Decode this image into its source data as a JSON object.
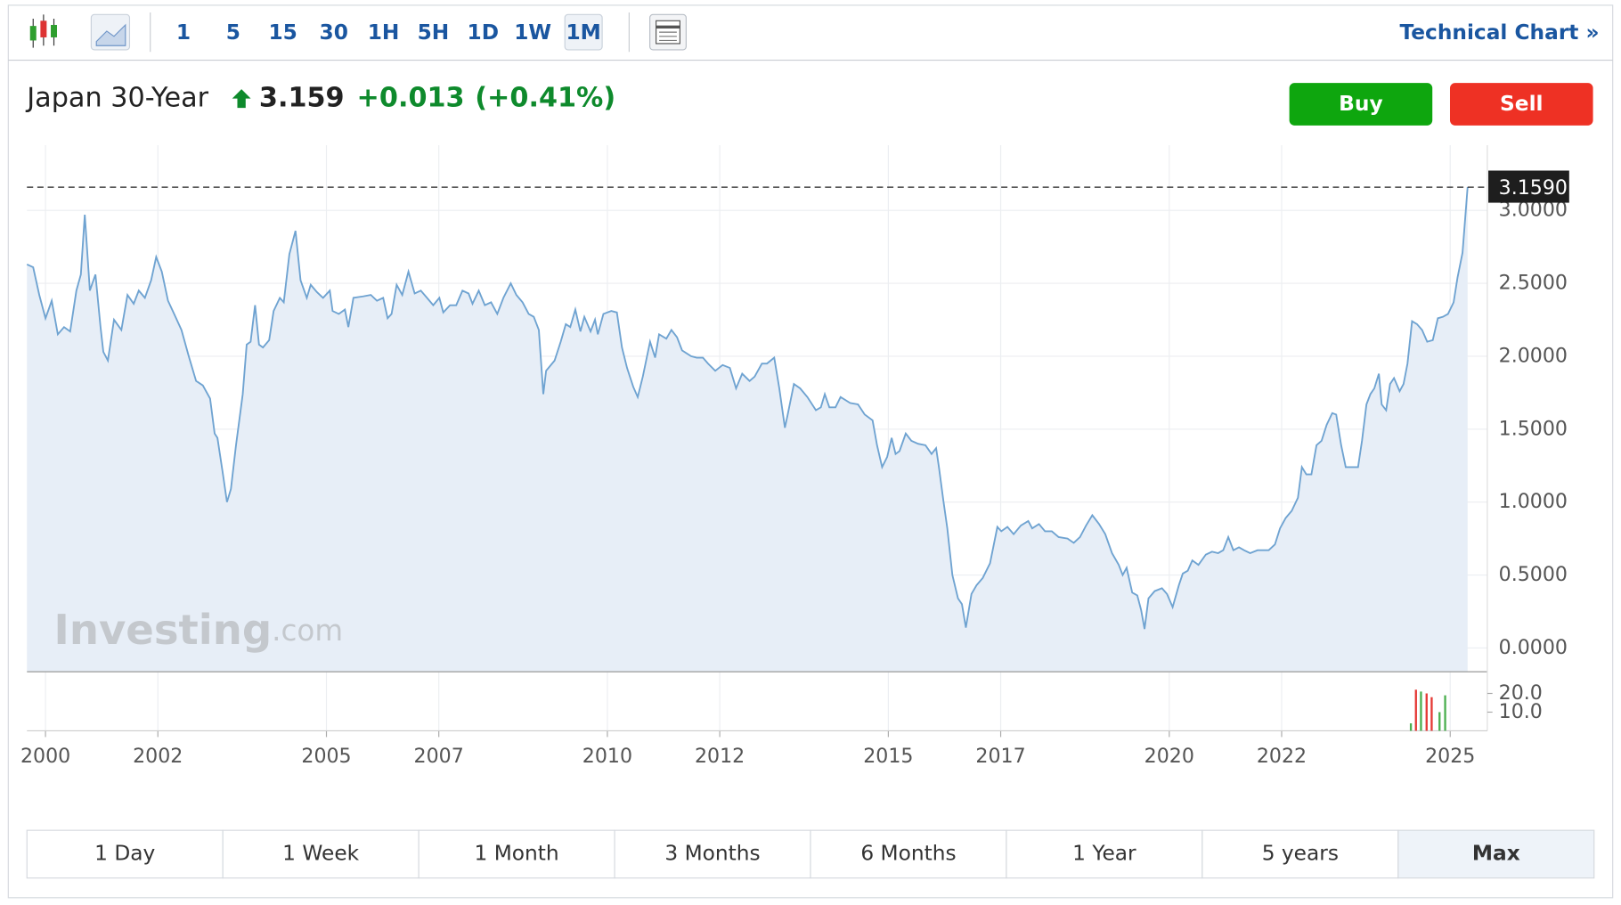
{
  "toolbar": {
    "intervals": [
      {
        "label": "1"
      },
      {
        "label": "5"
      },
      {
        "label": "15"
      },
      {
        "label": "30"
      },
      {
        "label": "1H"
      },
      {
        "label": "5H"
      },
      {
        "label": "1D"
      },
      {
        "label": "1W"
      },
      {
        "label": "1M",
        "active": true
      }
    ],
    "link": "Technical Chart »"
  },
  "header": {
    "name": "Japan 30-Year",
    "last": "3.159",
    "change": "+0.013",
    "change_pct": "(+0.41%)"
  },
  "buttons": {
    "buy": "Buy",
    "sell": "Sell"
  },
  "watermark": {
    "brand": "Investing",
    "suffix": ".com"
  },
  "chart_data": {
    "type": "line",
    "color": "#6fa3d1",
    "fill": "#e7eef7",
    "x": [
      1999.67,
      1999.78,
      1999.89,
      2000.0,
      2000.11,
      2000.22,
      2000.33,
      2000.44,
      2000.55,
      2000.63,
      2000.7,
      2000.79,
      2000.89,
      2000.98,
      2001.03,
      2001.11,
      2001.22,
      2001.35,
      2001.46,
      2001.57,
      2001.66,
      2001.77,
      2001.88,
      2001.97,
      2002.07,
      2002.18,
      2002.29,
      2002.42,
      2002.55,
      2002.68,
      2002.8,
      2002.93,
      2003.01,
      2003.06,
      2003.15,
      2003.23,
      2003.3,
      2003.39,
      2003.51,
      2003.58,
      2003.65,
      2003.73,
      2003.8,
      2003.87,
      2003.98,
      2004.06,
      2004.17,
      2004.24,
      2004.34,
      2004.45,
      2004.54,
      2004.65,
      2004.72,
      2004.83,
      2004.94,
      2005.06,
      2005.11,
      2005.22,
      2005.33,
      2005.39,
      2005.48,
      2005.65,
      2005.79,
      2005.9,
      2006.01,
      2006.09,
      2006.16,
      2006.25,
      2006.35,
      2006.46,
      2006.57,
      2006.68,
      2006.79,
      2006.9,
      2007.01,
      2007.08,
      2007.2,
      2007.31,
      2007.42,
      2007.53,
      2007.6,
      2007.71,
      2007.82,
      2007.93,
      2008.04,
      2008.15,
      2008.28,
      2008.38,
      2008.49,
      2008.6,
      2008.69,
      2008.78,
      2008.86,
      2008.91,
      2009.06,
      2009.17,
      2009.26,
      2009.34,
      2009.43,
      2009.52,
      2009.59,
      2009.7,
      2009.78,
      2009.83,
      2009.93,
      2010.07,
      2010.17,
      2010.26,
      2010.35,
      2010.46,
      2010.54,
      2010.63,
      2010.76,
      2010.85,
      2010.92,
      2011.05,
      2011.14,
      2011.24,
      2011.33,
      2011.49,
      2011.59,
      2011.7,
      2011.79,
      2011.92,
      2012.05,
      2012.18,
      2012.29,
      2012.4,
      2012.53,
      2012.62,
      2012.75,
      2012.84,
      2012.97,
      2013.06,
      2013.16,
      2013.21,
      2013.32,
      2013.43,
      2013.56,
      2013.71,
      2013.8,
      2013.87,
      2013.95,
      2014.06,
      2014.15,
      2014.32,
      2014.46,
      2014.58,
      2014.72,
      2014.8,
      2014.89,
      2014.98,
      2015.06,
      2015.13,
      2015.2,
      2015.31,
      2015.41,
      2015.53,
      2015.66,
      2015.77,
      2015.85,
      2015.9,
      2015.98,
      2016.05,
      2016.14,
      2016.24,
      2016.31,
      2016.38,
      2016.48,
      2016.57,
      2016.68,
      2016.81,
      2016.94,
      2017.01,
      2017.12,
      2017.23,
      2017.36,
      2017.49,
      2017.56,
      2017.68,
      2017.79,
      2017.91,
      2018.03,
      2018.19,
      2018.3,
      2018.41,
      2018.52,
      2018.63,
      2018.75,
      2018.86,
      2018.98,
      2019.1,
      2019.17,
      2019.24,
      2019.34,
      2019.43,
      2019.5,
      2019.56,
      2019.63,
      2019.74,
      2019.87,
      2019.96,
      2020.06,
      2020.17,
      2020.24,
      2020.33,
      2020.41,
      2020.52,
      2020.65,
      2020.76,
      2020.87,
      2020.96,
      2021.05,
      2021.14,
      2021.24,
      2021.33,
      2021.44,
      2021.57,
      2021.66,
      2021.77,
      2021.88,
      2021.97,
      2022.07,
      2022.18,
      2022.29,
      2022.36,
      2022.44,
      2022.53,
      2022.62,
      2022.71,
      2022.8,
      2022.9,
      2022.97,
      2023.06,
      2023.14,
      2023.25,
      2023.36,
      2023.43,
      2023.51,
      2023.58,
      2023.65,
      2023.73,
      2023.78,
      2023.86,
      2023.93,
      2024.0,
      2024.1,
      2024.17,
      2024.24,
      2024.32,
      2024.41,
      2024.5,
      2024.59,
      2024.69,
      2024.78,
      2024.87,
      2024.96,
      2025.06,
      2025.13,
      2025.22,
      2025.31
    ],
    "values": [
      2.63,
      2.61,
      2.42,
      2.26,
      2.38,
      2.15,
      2.2,
      2.17,
      2.45,
      2.56,
      2.97,
      2.45,
      2.56,
      2.2,
      2.03,
      1.97,
      2.25,
      2.18,
      2.42,
      2.36,
      2.45,
      2.4,
      2.52,
      2.68,
      2.58,
      2.38,
      2.29,
      2.18,
      2.0,
      1.83,
      1.8,
      1.71,
      1.47,
      1.44,
      1.21,
      1.0,
      1.09,
      1.39,
      1.74,
      2.08,
      2.1,
      2.35,
      2.08,
      2.06,
      2.11,
      2.31,
      2.4,
      2.37,
      2.7,
      2.86,
      2.52,
      2.4,
      2.49,
      2.44,
      2.4,
      2.45,
      2.31,
      2.29,
      2.32,
      2.2,
      2.4,
      2.41,
      2.42,
      2.38,
      2.4,
      2.26,
      2.29,
      2.49,
      2.42,
      2.58,
      2.43,
      2.45,
      2.4,
      2.35,
      2.4,
      2.3,
      2.35,
      2.35,
      2.45,
      2.43,
      2.36,
      2.45,
      2.35,
      2.37,
      2.29,
      2.4,
      2.5,
      2.42,
      2.37,
      2.29,
      2.27,
      2.18,
      1.74,
      1.9,
      1.97,
      2.1,
      2.22,
      2.2,
      2.32,
      2.17,
      2.27,
      2.17,
      2.25,
      2.15,
      2.29,
      2.31,
      2.3,
      2.06,
      1.92,
      1.79,
      1.72,
      1.86,
      2.1,
      1.99,
      2.15,
      2.12,
      2.18,
      2.13,
      2.04,
      2.0,
      1.99,
      1.99,
      1.95,
      1.9,
      1.94,
      1.92,
      1.78,
      1.88,
      1.83,
      1.86,
      1.95,
      1.95,
      1.99,
      1.78,
      1.51,
      1.6,
      1.81,
      1.78,
      1.72,
      1.63,
      1.65,
      1.74,
      1.65,
      1.65,
      1.72,
      1.68,
      1.67,
      1.6,
      1.56,
      1.39,
      1.24,
      1.31,
      1.44,
      1.33,
      1.35,
      1.47,
      1.42,
      1.4,
      1.39,
      1.33,
      1.37,
      1.24,
      1.01,
      0.82,
      0.5,
      0.34,
      0.3,
      0.14,
      0.37,
      0.43,
      0.48,
      0.58,
      0.83,
      0.8,
      0.83,
      0.78,
      0.84,
      0.87,
      0.82,
      0.85,
      0.8,
      0.8,
      0.76,
      0.75,
      0.72,
      0.76,
      0.84,
      0.91,
      0.85,
      0.78,
      0.65,
      0.57,
      0.5,
      0.55,
      0.38,
      0.36,
      0.26,
      0.13,
      0.34,
      0.39,
      0.41,
      0.37,
      0.28,
      0.43,
      0.51,
      0.53,
      0.6,
      0.57,
      0.64,
      0.66,
      0.65,
      0.67,
      0.76,
      0.67,
      0.69,
      0.67,
      0.65,
      0.67,
      0.67,
      0.67,
      0.71,
      0.82,
      0.89,
      0.94,
      1.03,
      1.24,
      1.19,
      1.19,
      1.39,
      1.42,
      1.53,
      1.61,
      1.6,
      1.39,
      1.24,
      1.24,
      1.24,
      1.42,
      1.67,
      1.74,
      1.78,
      1.88,
      1.67,
      1.63,
      1.81,
      1.85,
      1.76,
      1.81,
      1.95,
      2.24,
      2.22,
      2.18,
      2.1,
      2.11,
      2.26,
      2.27,
      2.29,
      2.37,
      2.54,
      2.71,
      3.159
    ],
    "xlim": [
      1999.67,
      2025.66
    ],
    "xticks": [
      2000,
      2002,
      2005,
      2007,
      2010,
      2012,
      2015,
      2017,
      2020,
      2022,
      2025
    ],
    "ylim": [
      -0.163,
      3.447
    ],
    "yticks": [
      {
        "value": 0,
        "label": "0.0000"
      },
      {
        "value": 0.5,
        "label": "0.5000"
      },
      {
        "value": 1,
        "label": "1.0000"
      },
      {
        "value": 1.5,
        "label": "1.5000"
      },
      {
        "value": 2,
        "label": "2.0000"
      },
      {
        "value": 2.5,
        "label": "2.5000"
      },
      {
        "value": 3,
        "label": "3.0000"
      }
    ],
    "grid": true,
    "last_value": {
      "value": 3.159,
      "label": "3.1590"
    },
    "volume": {
      "x": [
        2024.3,
        2024.39,
        2024.48,
        2024.58,
        2024.67,
        2024.81,
        2024.91
      ],
      "values": [
        4,
        22,
        21,
        20,
        18,
        10,
        19
      ],
      "colors": [
        "#4caf50",
        "#e53935",
        "#4caf50",
        "#e53935",
        "#e53935",
        "#4caf50",
        "#4caf50"
      ],
      "ylim": [
        0,
        29.4
      ],
      "yticks": [
        {
          "value": 20,
          "label": "20.0"
        },
        {
          "value": 10,
          "label": "10.0"
        }
      ]
    }
  },
  "range_buttons": [
    {
      "label": "1 Day"
    },
    {
      "label": "1 Week"
    },
    {
      "label": "1 Month"
    },
    {
      "label": "3 Months"
    },
    {
      "label": "6 Months"
    },
    {
      "label": "1 Year"
    },
    {
      "label": "5 years"
    },
    {
      "label": "Max",
      "active": true
    }
  ]
}
